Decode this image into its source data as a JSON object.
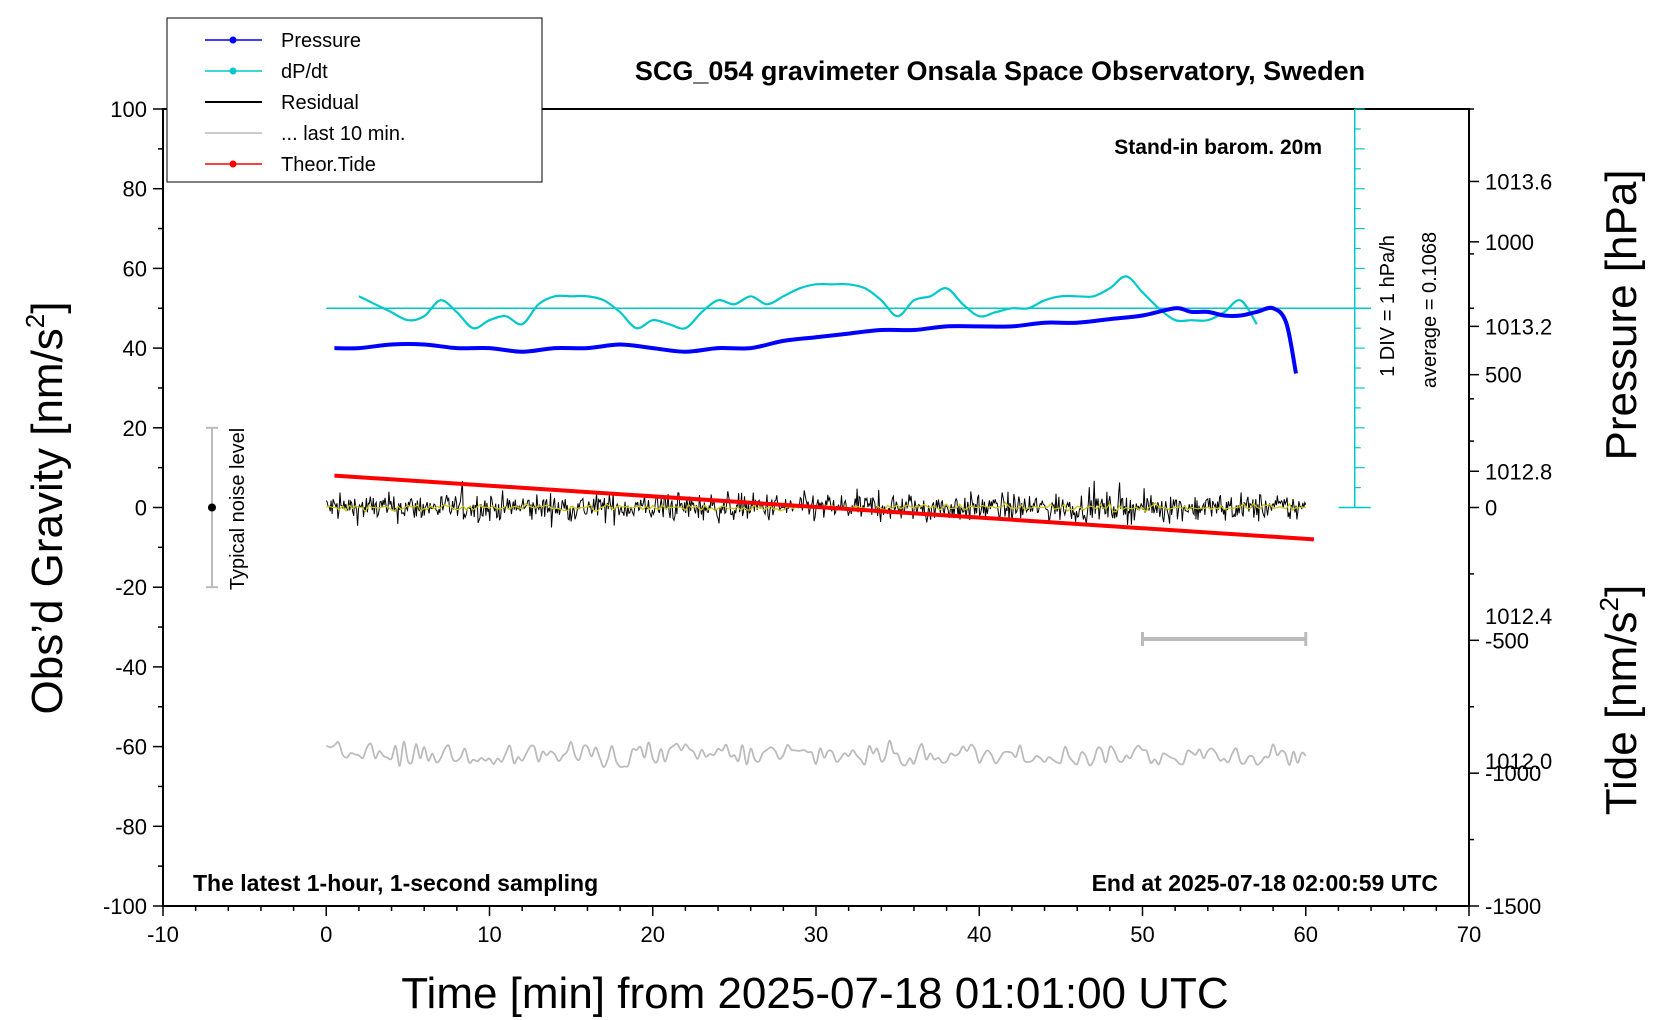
{
  "chart_data": {
    "type": "line",
    "title": "SCG_054 gravimeter Onsala Space Observatory, Sweden",
    "xlabel": "Time [min] from 2025-07-18 01:01:00 UTC",
    "ylabel_left": "Obs'd Gravity [nm/s²]",
    "ylabel_left_main": "Obs’d Gravity [nm/s",
    "ylabel_left_sup": "2",
    "ylabel_left_end": "]",
    "ylabel_pressure": "Pressure [hPa]",
    "ylabel_tide_main": "Tide [nm/s",
    "ylabel_tide_sup": "2",
    "ylabel_tide_end": "]",
    "xlim": [
      -10,
      70
    ],
    "ylim_left": [
      -100,
      100
    ],
    "ylim_pressure": [
      1011.6,
      1013.8
    ],
    "ylim_tide": [
      -1500,
      1500
    ],
    "x_ticks": [
      "-10",
      "0",
      "10",
      "20",
      "30",
      "40",
      "50",
      "60",
      "70"
    ],
    "y_left_ticks": [
      "-100",
      "-80",
      "-60",
      "-40",
      "-20",
      "0",
      "20",
      "40",
      "60",
      "80",
      "100"
    ],
    "y_pressure_ticks": [
      "1012.0",
      "1012.4",
      "1012.8",
      "1013.2",
      "1013.6"
    ],
    "y_tide_ticks": [
      "-1500",
      "-1000",
      "-500",
      "0",
      "500",
      "1000"
    ],
    "legend": [
      {
        "label": "Pressure",
        "color": "#0000ff",
        "marker": true
      },
      {
        "label": "dP/dt",
        "color": "#00c8c8",
        "marker": true
      },
      {
        "label": "Residual",
        "color": "#000000",
        "marker": false
      },
      {
        "label": "... last 10 min.",
        "color": "#bbbbbb",
        "marker": false
      },
      {
        "label": "Theor.Tide",
        "color": "#ff0000",
        "marker": true
      }
    ],
    "annotations": {
      "barometer": "Stand-in barom. 20m",
      "sampling": "The latest 1-hour, 1-second sampling",
      "end_time": "End at 2025-07-18 02:00:59 UTC",
      "noise": "Typical noise level",
      "div_scale": "1 DIV = 1 hPa/h",
      "average": "average = 0.1068"
    },
    "colors": {
      "pressure": "#0000ff",
      "dpdt": "#00c8c8",
      "residual": "#000000",
      "residual_smooth": "#c8c800",
      "last10": "#bbbbbb",
      "tide": "#ff0000",
      "noise_bar": "#bbbbbb"
    },
    "series": {
      "pressure": {
        "name": "Pressure",
        "x": [
          0.5,
          2,
          4,
          6,
          8,
          10,
          12,
          14,
          16,
          18,
          20,
          22,
          24,
          26,
          28,
          30,
          32,
          34,
          36,
          38,
          40,
          42,
          44,
          46,
          48,
          50,
          52,
          53,
          54,
          55,
          56,
          57,
          58,
          58.8,
          59.4
        ],
        "y": [
          1013.14,
          1013.14,
          1013.15,
          1013.15,
          1013.14,
          1013.14,
          1013.13,
          1013.14,
          1013.14,
          1013.15,
          1013.14,
          1013.13,
          1013.14,
          1013.14,
          1013.16,
          1013.17,
          1013.18,
          1013.19,
          1013.19,
          1013.2,
          1013.2,
          1013.2,
          1013.21,
          1013.21,
          1013.22,
          1013.23,
          1013.25,
          1013.24,
          1013.24,
          1013.23,
          1013.23,
          1013.24,
          1013.25,
          1013.21,
          1013.07
        ]
      },
      "dpdt": {
        "name": "dP/dt",
        "baseline": 50,
        "x": [
          2,
          3,
          4,
          5,
          6,
          7,
          8,
          9,
          10,
          11,
          12,
          13,
          14,
          15,
          16,
          17,
          18,
          19,
          20,
          21,
          22,
          23,
          24,
          25,
          26,
          27,
          28,
          29,
          30,
          31,
          32,
          33,
          34,
          35,
          36,
          37,
          38,
          39,
          40,
          41,
          42,
          43,
          44,
          45,
          46,
          47,
          48,
          49,
          50,
          51,
          52,
          53,
          54,
          55,
          56,
          57
        ],
        "y": [
          53,
          51,
          49,
          47,
          48,
          52,
          49,
          45,
          47,
          48,
          46,
          51,
          53,
          53,
          53,
          52,
          49,
          45,
          47,
          46,
          45,
          49,
          52,
          51,
          53,
          51,
          53,
          55,
          56,
          56,
          56,
          55,
          52,
          48,
          52,
          53,
          55,
          51,
          48,
          49,
          50,
          50,
          52,
          53,
          53,
          53,
          55,
          58,
          54,
          50,
          47,
          47,
          47,
          49,
          52,
          46
        ]
      },
      "residual": {
        "name": "Residual",
        "x_range": [
          0,
          60
        ],
        "mean": 0,
        "amplitude": 2.5
      },
      "last10": {
        "name": "... last 10 min.",
        "x_range": [
          0,
          60
        ],
        "mean": -62,
        "amplitude": 3
      },
      "tide": {
        "name": "Theor.Tide",
        "x": [
          0.5,
          60.5
        ],
        "y": [
          120,
          -120
        ]
      }
    },
    "noise_bar": {
      "x": -7,
      "range": [
        -20,
        20
      ],
      "point": 0
    },
    "div_scale_axis": {
      "x": 63,
      "range": [
        0,
        100
      ]
    },
    "scale_bar": {
      "x_range": [
        50,
        60
      ],
      "y": -33
    }
  }
}
